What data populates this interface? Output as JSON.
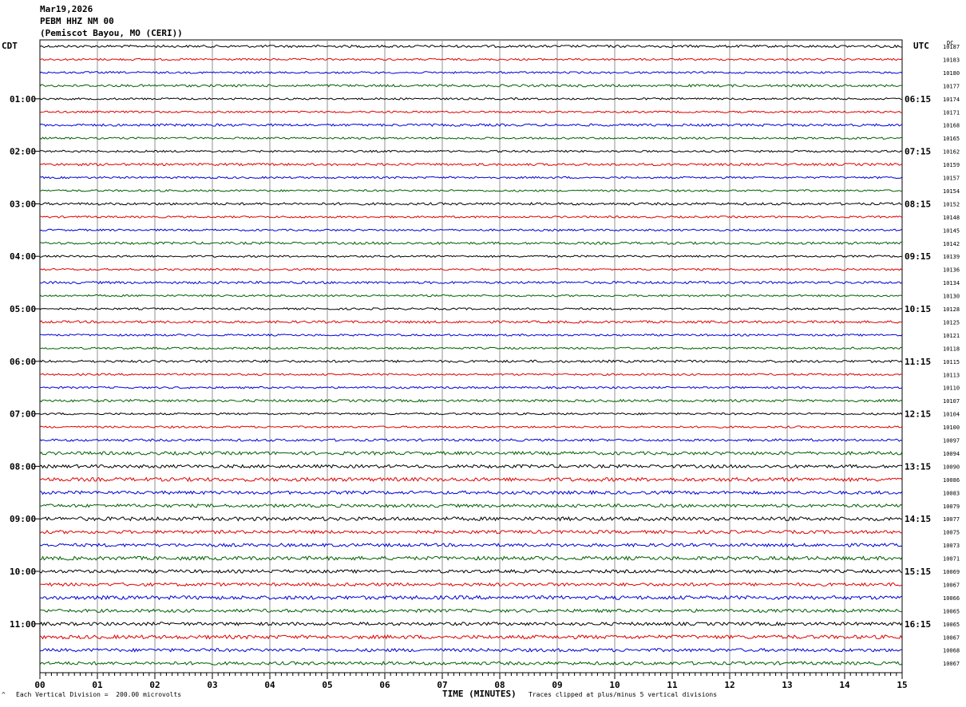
{
  "header": {
    "date": "Mar19,2026",
    "station": "PEBM HHZ NM 00",
    "location": "(Pemiscot Bayou, MO (CERI))"
  },
  "left_tz": "CDT",
  "right_tz": "UTC",
  "dc_label": "DC",
  "x_axis_title": "TIME (MINUTES)",
  "footer_left": "Each Vertical Division =  200.00 microvolts",
  "footer_right": "Traces clipped at plus/minus 5 vertical divisions",
  "footer_mark": "^",
  "colors": {
    "trace_cycle": [
      "#000000",
      "#e00000",
      "#0000d8",
      "#006000"
    ],
    "grid": "#909090"
  },
  "chart_data": {
    "type": "line",
    "title": "",
    "x_ticks": [
      "00",
      "01",
      "02",
      "03",
      "04",
      "05",
      "06",
      "07",
      "08",
      "09",
      "10",
      "11",
      "12",
      "13",
      "14",
      "15"
    ],
    "xlim": [
      0,
      15
    ],
    "traces_per_hour": 4,
    "left_hour_labels": [
      "01:00",
      "02:00",
      "03:00",
      "04:00",
      "05:00",
      "06:00",
      "07:00",
      "08:00",
      "09:00",
      "10:00",
      "11:00"
    ],
    "right_hour_labels": [
      "06:15",
      "07:15",
      "08:15",
      "09:15",
      "10:15",
      "11:15",
      "12:15",
      "13:15",
      "14:15",
      "15:15",
      "16:15"
    ],
    "dc_values": [
      10187,
      10183,
      10180,
      10177,
      10174,
      10171,
      10168,
      10165,
      10162,
      10159,
      10157,
      10154,
      10152,
      10148,
      10145,
      10142,
      10139,
      10136,
      10134,
      10130,
      10128,
      10125,
      10121,
      10118,
      10115,
      10113,
      10110,
      10107,
      10104,
      10100,
      10097,
      10094,
      10090,
      10086,
      10083,
      10079,
      10077,
      10075,
      10073,
      10071,
      10069,
      10067,
      10066,
      10065,
      10065,
      10067,
      10068,
      10067
    ]
  }
}
